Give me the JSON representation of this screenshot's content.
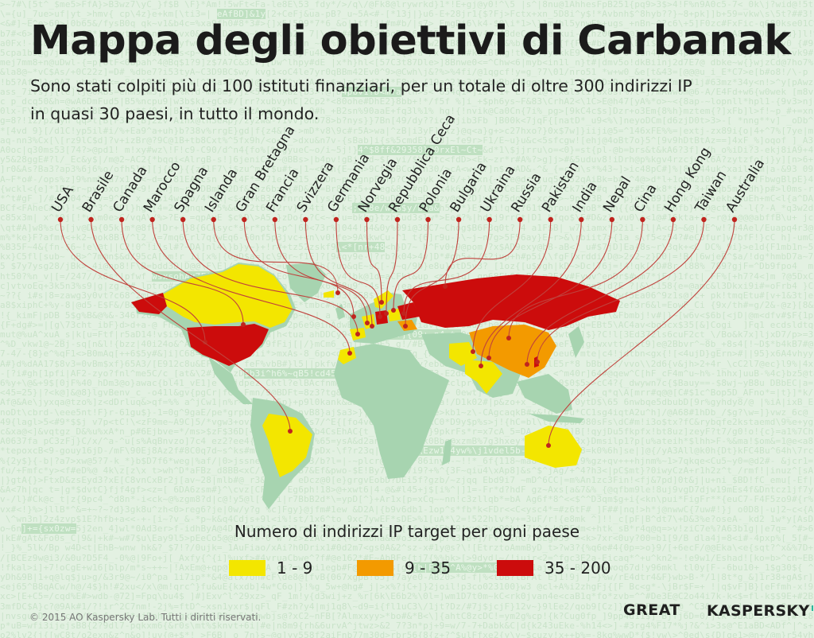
{
  "title": "Mappa degli obiettivi di Carbanak",
  "subtitle_line1": "Sono stati colpiti più di 100 istituti finanziari, per un totale di oltre 300 indirizzi IP",
  "subtitle_line2": "in quasi 30 paesi, in tutto il mondo.",
  "countries": [
    {
      "name": "USA",
      "category": "35-200"
    },
    {
      "name": "Brasile",
      "category": "1-9"
    },
    {
      "name": "Canada",
      "category": "1-9"
    },
    {
      "name": "Marocco",
      "category": "1-9"
    },
    {
      "name": "Spagna",
      "category": "1-9"
    },
    {
      "name": "Islanda",
      "category": "1-9"
    },
    {
      "name": "Gran Bretagna",
      "category": "1-9"
    },
    {
      "name": "Francia",
      "category": "1-9"
    },
    {
      "name": "Svizzera",
      "category": "1-9"
    },
    {
      "name": "Germania",
      "category": "35-200"
    },
    {
      "name": "Norvegia",
      "category": "1-9"
    },
    {
      "name": "Repubblica Ceca",
      "category": "1-9"
    },
    {
      "name": "Polonia",
      "category": "1-9"
    },
    {
      "name": "Bulgaria",
      "category": "9-35"
    },
    {
      "name": "Ukraina",
      "category": "35-200"
    },
    {
      "name": "Russia",
      "category": "35-200"
    },
    {
      "name": "Pakistan",
      "category": "1-9"
    },
    {
      "name": "India",
      "category": "1-9"
    },
    {
      "name": "Nepal",
      "category": "1-9"
    },
    {
      "name": "Cina",
      "category": "9-35"
    },
    {
      "name": "Hong Kong",
      "category": "1-9"
    },
    {
      "name": "Taiwan",
      "category": "35-200"
    },
    {
      "name": "Australia",
      "category": "1-9"
    }
  ],
  "legend": {
    "title": "Numero di indirizzi IP target per ogni paese",
    "items": [
      {
        "label": "1 - 9",
        "color": "#f3e600"
      },
      {
        "label": "9 - 35",
        "color": "#f39a00"
      },
      {
        "label": "35 - 200",
        "color": "#cc0c0c"
      }
    ]
  },
  "colors": {
    "land": "#a7d4b0",
    "line": "#c0413c",
    "dot": "#c0241e"
  },
  "footer": {
    "copyright": "© 2015 AO Kaspersky Lab. Tutti i diritti riservati.",
    "logo_great": "GREAT",
    "logo_kaspersky": "KASPERSKY",
    "logo_lab": "lab"
  }
}
